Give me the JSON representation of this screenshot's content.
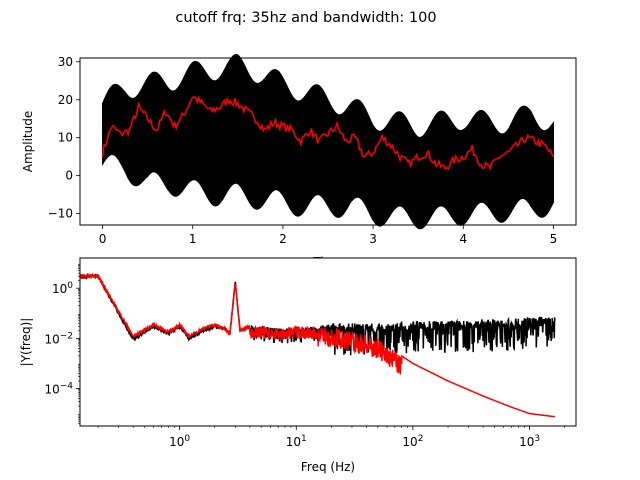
{
  "figure": {
    "suptitle": "cutoff frq: 35hz and bandwidth: 100"
  },
  "chart_data": [
    {
      "type": "line",
      "xlabel": "Time",
      "ylabel": "Amplitude",
      "xlim": [
        -0.25,
        5.25
      ],
      "ylim": [
        -13,
        31
      ],
      "xticks": [
        0,
        1,
        2,
        3,
        4,
        5
      ],
      "yticks": [
        -10,
        0,
        10,
        20,
        30
      ],
      "series": [
        {
          "color": "#000000",
          "envelope_x": [
            0,
            0.25,
            0.5,
            0.75,
            1.0,
            1.25,
            1.5,
            1.75,
            2.0,
            2.25,
            2.5,
            2.75,
            3.0,
            3.25,
            3.5,
            3.75,
            4.0,
            4.25,
            4.5,
            4.75,
            5.0
          ],
          "upper": [
            19,
            23,
            24,
            25,
            27,
            28,
            29,
            27,
            24,
            22,
            20,
            18,
            15,
            14,
            13,
            14,
            15,
            14,
            14,
            16,
            14
          ],
          "lower": [
            3,
            2,
            -2,
            -2,
            -4,
            -5,
            -5,
            -6,
            -7,
            -8,
            -8,
            -8,
            -10,
            -11,
            -11,
            -11,
            -10,
            -10,
            -9,
            -9,
            -7
          ]
        },
        {
          "color": "#ff0000",
          "x": [
            0,
            0.1,
            0.2,
            0.3,
            0.4,
            0.5,
            0.6,
            0.7,
            0.8,
            0.9,
            1.0,
            1.1,
            1.2,
            1.3,
            1.4,
            1.5,
            1.6,
            1.7,
            1.8,
            1.9,
            2.0,
            2.1,
            2.2,
            2.3,
            2.4,
            2.5,
            2.6,
            2.7,
            2.8,
            2.9,
            3.0,
            3.1,
            3.2,
            3.3,
            3.4,
            3.5,
            3.6,
            3.7,
            3.8,
            3.9,
            4.0,
            4.1,
            4.2,
            4.3,
            4.4,
            4.5,
            4.6,
            4.7,
            4.8,
            4.9,
            5.0
          ],
          "y": [
            6,
            13,
            11,
            12,
            18,
            15,
            12,
            17,
            13,
            16,
            21,
            19,
            17,
            18,
            20,
            19,
            17,
            15,
            12,
            14,
            13,
            12,
            9,
            12,
            9,
            11,
            13,
            9,
            10,
            5,
            6,
            10,
            8,
            5,
            3,
            5,
            6,
            3,
            2,
            4,
            5,
            7,
            3,
            2,
            5,
            6,
            8,
            10,
            9,
            8,
            5
          ]
        }
      ]
    },
    {
      "type": "line",
      "xlabel": "Freq (Hz)",
      "ylabel": "|Y(freq)|",
      "xscale": "log",
      "yscale": "log",
      "xlim": [
        0.14,
        2500
      ],
      "ylim": [
        3.2e-06,
        16
      ],
      "xticks": [
        1,
        10,
        100,
        1000
      ],
      "xtick_labels": [
        "10^0",
        "10^1",
        "10^2",
        "10^3"
      ],
      "yticks": [
        0.0001,
        0.01,
        1
      ],
      "ytick_labels": [
        "10^-4",
        "10^-2",
        "10^0"
      ],
      "series": [
        {
          "color": "#000000",
          "x": [
            0.14,
            0.2,
            0.4,
            0.6,
            0.8,
            1.0,
            1.2,
            1.6,
            2.0,
            2.4,
            2.7,
            3.0,
            3.3,
            4,
            5,
            7,
            10,
            15,
            20,
            30,
            50,
            100,
            200,
            500,
            1000,
            1650
          ],
          "y": [
            3,
            3,
            0.009,
            0.03,
            0.015,
            0.03,
            0.01,
            0.02,
            0.03,
            0.025,
            0.015,
            1.8,
            0.02,
            0.03,
            0.03,
            0.025,
            0.025,
            0.03,
            0.04,
            0.04,
            0.04,
            0.05,
            0.05,
            0.06,
            0.07,
            0.08
          ]
        },
        {
          "color": "#ff0000",
          "x": [
            0.14,
            0.2,
            0.4,
            0.6,
            0.8,
            1.0,
            1.2,
            1.6,
            2.0,
            2.4,
            2.7,
            3.0,
            3.3,
            4,
            5,
            7,
            10,
            15,
            20,
            30,
            50,
            80,
            100,
            200,
            400,
            700,
            1000,
            1650
          ],
          "y": [
            3,
            3,
            0.012,
            0.035,
            0.018,
            0.035,
            0.012,
            0.025,
            0.035,
            0.025,
            0.015,
            1.8,
            0.02,
            0.03,
            0.03,
            0.025,
            0.03,
            0.03,
            0.025,
            0.02,
            0.01,
            0.002,
            0.001,
            0.0002,
            5e-05,
            1.8e-05,
            1e-05,
            7.5e-06
          ]
        }
      ]
    }
  ]
}
